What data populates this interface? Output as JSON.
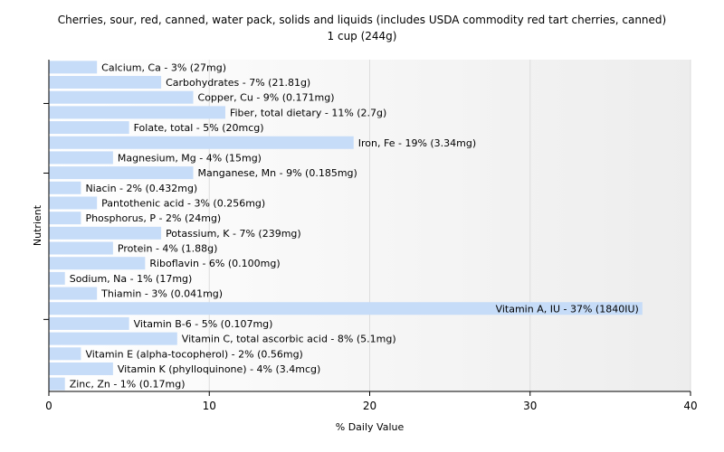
{
  "chart_data": {
    "type": "bar",
    "orientation": "horizontal",
    "title": "Cherries, sour, red, canned, water pack, solids and liquids (includes USDA commodity red tart cherries, canned)",
    "subtitle": "1 cup (244g)",
    "xlabel": "% Daily Value",
    "ylabel": "Nutrient",
    "xlim": [
      0,
      40
    ],
    "xticks": [
      0,
      10,
      20,
      30,
      40
    ],
    "grid": true,
    "bar_color": "#c6dcf8",
    "categories": [
      "Calcium, Ca - 3% (27mg)",
      "Carbohydrates - 7% (21.81g)",
      "Copper, Cu - 9% (0.171mg)",
      "Fiber, total dietary - 11% (2.7g)",
      "Folate, total - 5% (20mcg)",
      "Iron, Fe - 19% (3.34mg)",
      "Magnesium, Mg - 4% (15mg)",
      "Manganese, Mn - 9% (0.185mg)",
      "Niacin - 2% (0.432mg)",
      "Pantothenic acid - 3% (0.256mg)",
      "Phosphorus, P - 2% (24mg)",
      "Potassium, K - 7% (239mg)",
      "Protein - 4% (1.88g)",
      "Riboflavin - 6% (0.100mg)",
      "Sodium, Na - 1% (17mg)",
      "Thiamin - 3% (0.041mg)",
      "Vitamin A, IU - 37% (1840IU)",
      "Vitamin B-6 - 5% (0.107mg)",
      "Vitamin C, total ascorbic acid - 8% (5.1mg)",
      "Vitamin E (alpha-tocopherol) - 2% (0.56mg)",
      "Vitamin K (phylloquinone) - 4% (3.4mcg)",
      "Zinc, Zn - 1% (0.17mg)"
    ],
    "values": [
      3,
      7,
      9,
      11,
      5,
      19,
      4,
      9,
      2,
      3,
      2,
      7,
      4,
      6,
      1,
      3,
      37,
      5,
      8,
      2,
      4,
      1
    ]
  }
}
